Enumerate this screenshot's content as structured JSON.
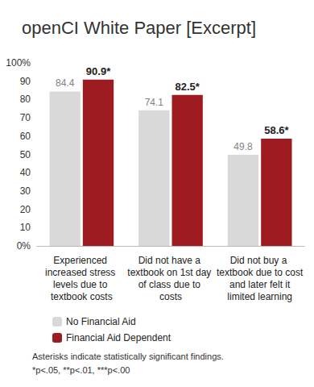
{
  "chart_data": {
    "type": "bar",
    "title": "openCI White Paper [Excerpt]",
    "categories": [
      "Experienced increased stress levels due to textbook costs",
      "Did not have a textbook on 1st day of class due to costs",
      "Did not buy a textbook due to cost and later felt it limited learning"
    ],
    "series": [
      {
        "name": "No Financial Aid",
        "color": "#d9d9d9",
        "values": [
          84.4,
          74.1,
          49.8
        ]
      },
      {
        "name": "Financial Aid Dependent",
        "color": "#9e1b22",
        "values": [
          90.9,
          82.5,
          58.6
        ],
        "value_labels": [
          "90.9*",
          "82.5*",
          "58.6*"
        ]
      }
    ],
    "ylim": [
      0,
      100
    ],
    "yticks": [
      {
        "value": 0,
        "label": "0%"
      },
      10,
      20,
      30,
      40,
      50,
      60,
      70,
      80,
      90,
      {
        "value": 100,
        "label": "100%"
      }
    ],
    "grid": false,
    "legend": "bottom",
    "data_labels": true,
    "annotations": [
      "Asterisks indicate statistically significant findings.",
      "*p<.05, **p<.01, ***p<.00"
    ]
  }
}
